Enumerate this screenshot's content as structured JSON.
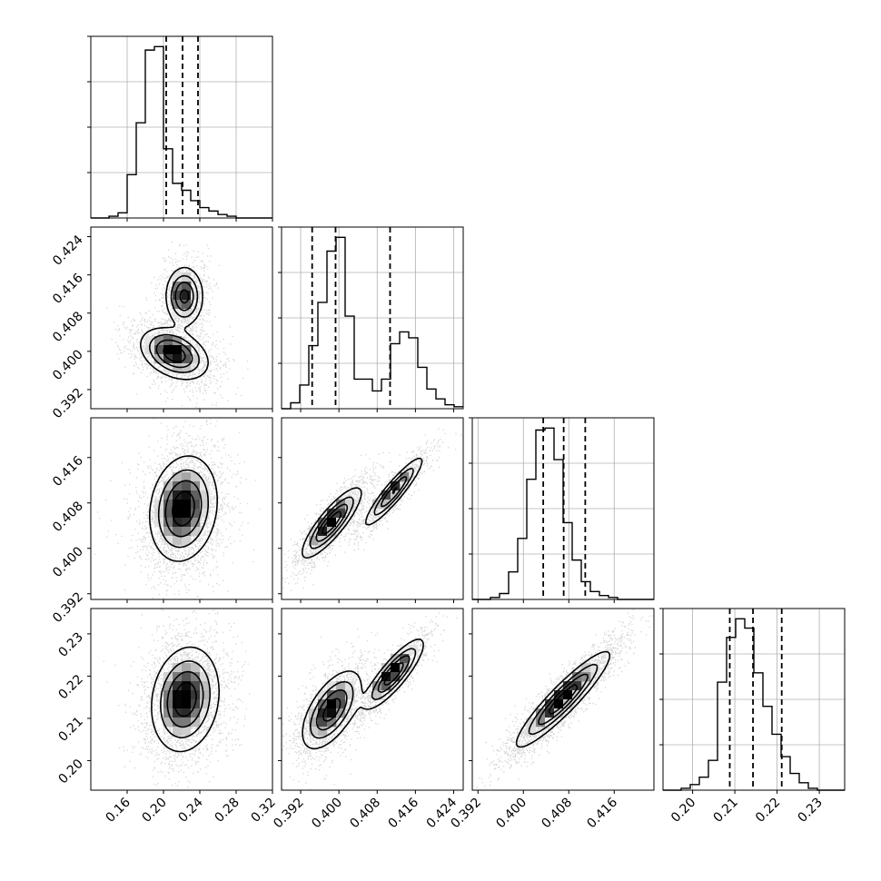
{
  "chart_data": {
    "type": "corner",
    "title": "",
    "parameters": [
      {
        "range": [
          0.12,
          0.32
        ],
        "ticks": [
          0.16,
          0.2,
          0.24,
          0.28,
          0.32
        ],
        "tick_labels": [
          "0.16",
          "0.20",
          "0.24",
          "0.28",
          "0.32"
        ]
      },
      {
        "range": [
          0.388,
          0.426
        ],
        "ticks": [
          0.392,
          0.4,
          0.408,
          0.416,
          0.424
        ],
        "tick_labels": [
          "0.392",
          "0.400",
          "0.408",
          "0.416",
          "0.424"
        ]
      },
      {
        "range": [
          0.391,
          0.423
        ],
        "ticks": [
          0.392,
          0.4,
          0.408,
          0.416
        ],
        "tick_labels": [
          "0.392",
          "0.400",
          "0.408",
          "0.416"
        ]
      },
      {
        "range": [
          0.193,
          0.236
        ],
        "ticks": [
          0.2,
          0.21,
          0.22,
          0.23
        ],
        "tick_labels": [
          "0.20",
          "0.21",
          "0.22",
          "0.23"
        ]
      }
    ],
    "quantiles": [
      [
        0.203,
        0.221,
        0.238
      ],
      [
        0.3944,
        0.3993,
        0.4107
      ],
      [
        0.4035,
        0.4071,
        0.4109
      ],
      [
        0.2088,
        0.2143,
        0.2211
      ]
    ],
    "histograms": [
      {
        "edges_start": 0.12,
        "bin_width": 0.01,
        "counts": [
          0,
          0,
          1,
          3,
          25,
          55,
          97,
          99,
          40,
          20,
          16,
          10,
          6,
          4,
          2,
          1,
          0,
          0,
          0,
          0
        ]
      },
      {
        "edges_start": 0.388,
        "bin_width": 0.0019,
        "counts": [
          0,
          3,
          12,
          32,
          54,
          80,
          87,
          47,
          15,
          15,
          9,
          15,
          33,
          39,
          36,
          21,
          10,
          5,
          2,
          1
        ]
      },
      {
        "edges_start": 0.391,
        "bin_width": 0.0016,
        "counts": [
          0,
          0,
          1,
          3,
          14,
          31,
          61,
          86,
          87,
          71,
          39,
          20,
          9,
          4,
          2,
          1,
          0,
          0,
          0,
          0
        ]
      },
      {
        "edges_start": 0.193,
        "bin_width": 0.00215,
        "counts": [
          0,
          0,
          1,
          3,
          7,
          16,
          58,
          82,
          92,
          87,
          63,
          45,
          30,
          18,
          9,
          4,
          1,
          0,
          0,
          0
        ]
      }
    ],
    "pairs": [
      {
        "row": 1,
        "col": 0,
        "components": [
          {
            "w": 0.62,
            "mx": 0.212,
            "my": 0.3995,
            "sx": 0.018,
            "sy": 0.0026,
            "rho": -0.35
          },
          {
            "w": 0.38,
            "mx": 0.223,
            "my": 0.4115,
            "sx": 0.01,
            "sy": 0.003,
            "rho": 0.0
          }
        ]
      },
      {
        "row": 2,
        "col": 0,
        "components": [
          {
            "w": 1.0,
            "mx": 0.222,
            "my": 0.407,
            "sx": 0.018,
            "sy": 0.0045,
            "rho": 0.15
          }
        ]
      },
      {
        "row": 3,
        "col": 0,
        "components": [
          {
            "w": 1.0,
            "mx": 0.224,
            "my": 0.2145,
            "sx": 0.018,
            "sy": 0.006,
            "rho": 0.15
          }
        ]
      },
      {
        "row": 2,
        "col": 1,
        "components": [
          {
            "w": 0.62,
            "mx": 0.3985,
            "my": 0.4045,
            "sx": 0.003,
            "sy": 0.003,
            "rho": 0.85
          },
          {
            "w": 0.38,
            "mx": 0.4115,
            "my": 0.41,
            "sx": 0.003,
            "sy": 0.003,
            "rho": 0.92
          }
        ]
      },
      {
        "row": 3,
        "col": 1,
        "components": [
          {
            "w": 0.62,
            "mx": 0.3985,
            "my": 0.212,
            "sx": 0.003,
            "sy": 0.0045,
            "rho": 0.6
          },
          {
            "w": 0.38,
            "mx": 0.4115,
            "my": 0.2205,
            "sx": 0.003,
            "sy": 0.004,
            "rho": 0.85
          }
        ]
      },
      {
        "row": 3,
        "col": 2,
        "components": [
          {
            "w": 1.0,
            "mx": 0.407,
            "my": 0.2145,
            "sx": 0.004,
            "sy": 0.0055,
            "rho": 0.92
          }
        ]
      }
    ],
    "grid": true,
    "legend": "none"
  }
}
